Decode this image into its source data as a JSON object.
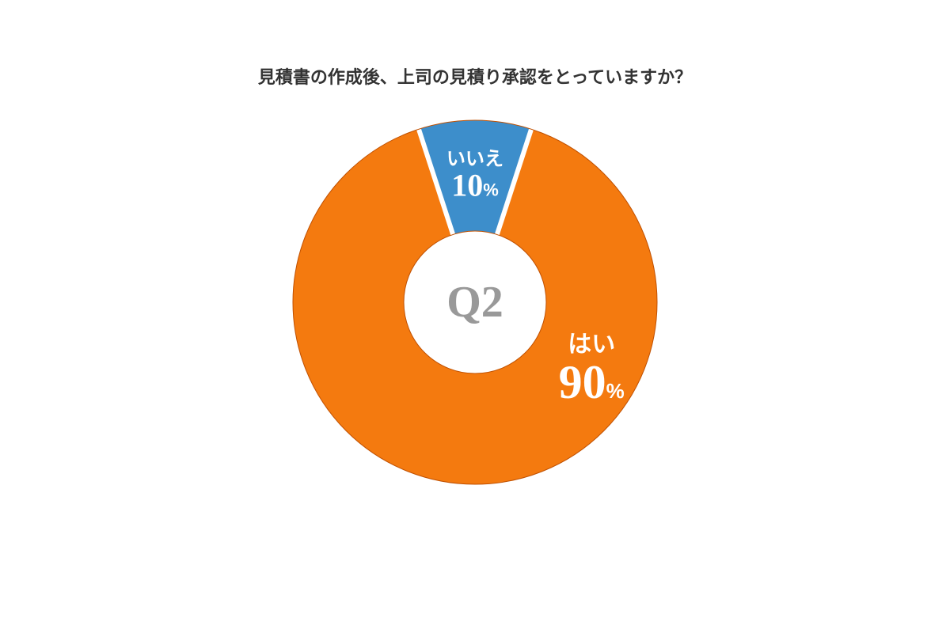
{
  "chart": {
    "type": "donut",
    "title": "見積書の作成後、上司の見積り承認をとっていますか？",
    "title_fontsize": 22,
    "title_color": "#333333",
    "center_label": "Q2",
    "center_label_fontsize": 56,
    "center_label_color": "#999999",
    "background_color": "#ffffff",
    "outer_radius": 230,
    "inner_radius": 90,
    "gap_color": "#ffffff",
    "gap_width": 6,
    "border_color": "#c05000",
    "border_width": 1,
    "start_angle_deg": -18,
    "slices": [
      {
        "key": "no",
        "label": "いいえ",
        "value": 10,
        "value_text": "10",
        "pct_text": "%",
        "color": "#3d8ecb",
        "label_name_fontsize": 24,
        "label_value_fontsize": 40,
        "label_pct_fontsize": 22,
        "label_offset_radius": 160,
        "label_color": "#ffffff"
      },
      {
        "key": "yes",
        "label": "はい",
        "value": 90,
        "value_text": "90",
        "pct_text": "%",
        "color": "#f47a0f",
        "label_name_fontsize": 30,
        "label_value_fontsize": 60,
        "label_pct_fontsize": 26,
        "label_offset_radius": 170,
        "label_angle_override_deg": 120,
        "label_color": "#ffffff"
      }
    ]
  }
}
